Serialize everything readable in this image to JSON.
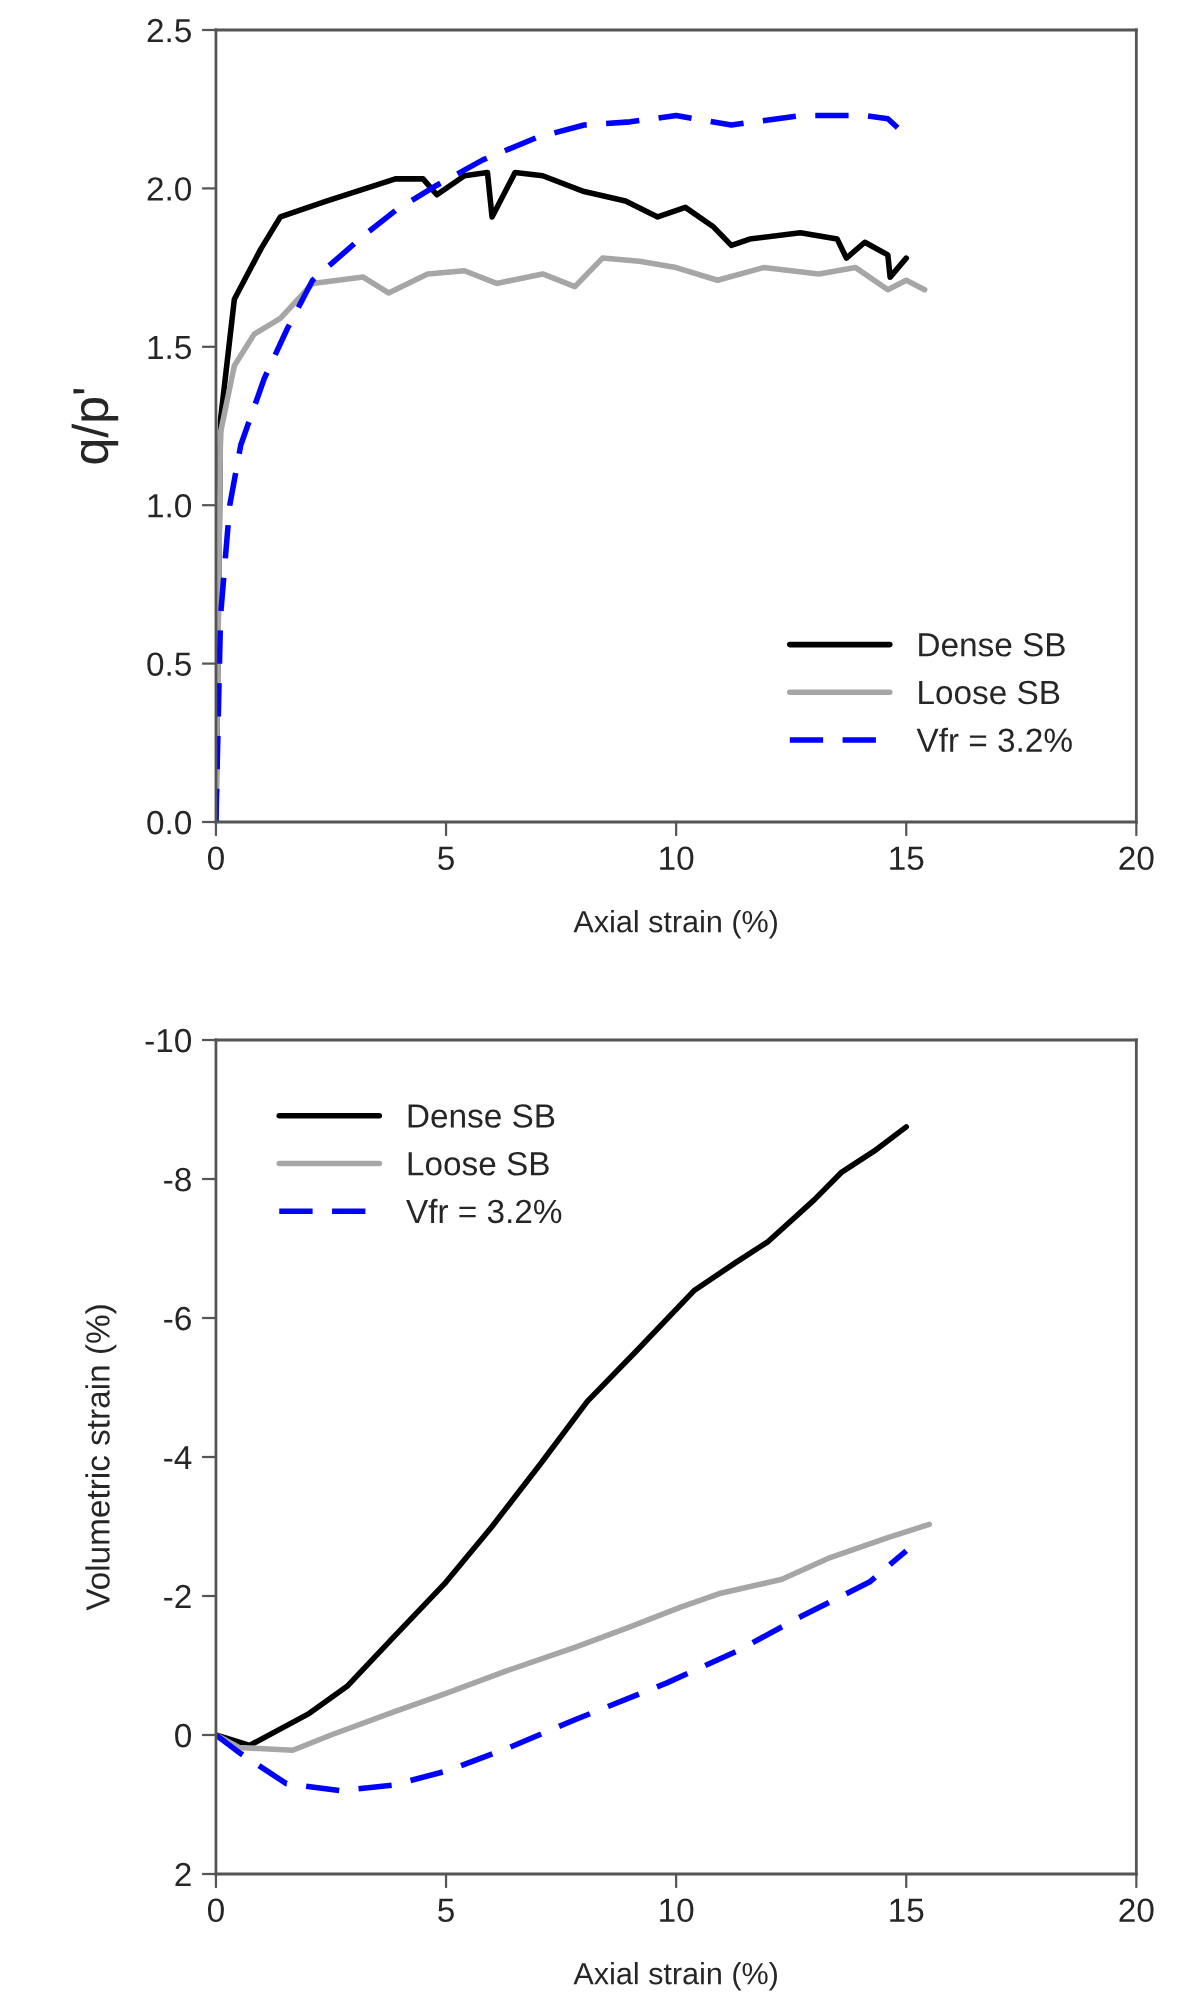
{
  "chart_data": [
    {
      "type": "line",
      "xlabel": "Axial strain (%)",
      "ylabel": "q/p'",
      "xlim": [
        0,
        20
      ],
      "xticks": [
        0,
        5,
        10,
        15,
        20
      ],
      "ylim": [
        0,
        2.5
      ],
      "yticks": [
        {
          "value": 0,
          "label": "0.0"
        },
        {
          "value": 0.5,
          "label": "0.5"
        },
        {
          "value": 1,
          "label": "1.0"
        },
        {
          "value": 1.5,
          "label": "1.5"
        },
        {
          "value": 2,
          "label": "2.0"
        },
        {
          "value": 2.5,
          "label": "2.5"
        }
      ],
      "legend": "bottom right",
      "grid": false,
      "series": [
        {
          "name": "Dense SB",
          "color": "#000000",
          "line_style": "solid",
          "x": [
            0,
            0.1,
            0.4,
            0.98,
            1.4,
            2.4,
            3.9,
            4.5,
            4.8,
            5.4,
            5.9,
            6.0,
            6.5,
            7.1,
            8.0,
            8.9,
            9.6,
            10.2,
            10.8,
            11.2,
            11.6,
            12.7,
            13.5,
            13.7,
            14.1,
            14.6,
            14.65,
            15.0
          ],
          "values": [
            0,
            1.27,
            1.65,
            1.81,
            1.91,
            1.96,
            2.03,
            2.03,
            1.98,
            2.04,
            2.05,
            1.91,
            2.05,
            2.04,
            1.99,
            1.96,
            1.91,
            1.94,
            1.88,
            1.82,
            1.84,
            1.86,
            1.84,
            1.78,
            1.83,
            1.79,
            1.72,
            1.78
          ]
        },
        {
          "name": "Loose SB",
          "color": "#a6a6a6",
          "line_style": "solid",
          "x": [
            0,
            0.1,
            0.4,
            0.83,
            1.4,
            2.1,
            3.2,
            3.75,
            4.6,
            5.4,
            6.1,
            7.1,
            7.8,
            8.4,
            9.2,
            10.0,
            10.9,
            11.9,
            13.1,
            13.9,
            14.6,
            15.0,
            15.4
          ],
          "values": [
            0,
            1.23,
            1.44,
            1.54,
            1.59,
            1.7,
            1.72,
            1.67,
            1.73,
            1.74,
            1.7,
            1.73,
            1.69,
            1.78,
            1.77,
            1.75,
            1.71,
            1.75,
            1.73,
            1.75,
            1.68,
            1.71,
            1.68
          ]
        },
        {
          "name": "Vfr = 3.2%",
          "color": "#0000ff",
          "line_style": "dashed",
          "x": [
            0,
            0.1,
            0.3,
            0.54,
            1.05,
            1.56,
            2.1,
            3.2,
            3.9,
            4.8,
            5.8,
            6.96,
            8.0,
            9.0,
            10.0,
            11.2,
            12.7,
            14.1,
            14.6,
            14.9
          ],
          "values": [
            0,
            0.65,
            1.0,
            1.19,
            1.4,
            1.56,
            1.71,
            1.85,
            1.93,
            2.01,
            2.09,
            2.16,
            2.2,
            2.21,
            2.23,
            2.2,
            2.23,
            2.23,
            2.22,
            2.18
          ]
        }
      ]
    },
    {
      "type": "line",
      "xlabel": "Axial strain (%)",
      "ylabel": "Volumetric strain (%)",
      "xlim": [
        0,
        20
      ],
      "xticks": [
        0,
        5,
        10,
        15,
        20
      ],
      "ylim": [
        2,
        -10
      ],
      "yticks": [
        -10,
        -8,
        -6,
        -4,
        -2,
        0,
        2
      ],
      "legend": "top left",
      "grid": false,
      "series": [
        {
          "name": "Dense SB",
          "color": "#000000",
          "line_style": "solid",
          "x": [
            0,
            0.73,
            2.0,
            2.85,
            3.85,
            5.0,
            6.0,
            7.05,
            8.07,
            9.1,
            10.4,
            11.3,
            12.0,
            13.0,
            13.6,
            14.3,
            15.0
          ],
          "values": [
            0,
            0.15,
            -0.3,
            -0.7,
            -1.4,
            -2.2,
            -3.0,
            -3.9,
            -4.8,
            -5.5,
            -6.4,
            -6.8,
            -7.1,
            -7.7,
            -8.1,
            -8.4,
            -8.75
          ]
        },
        {
          "name": "Loose SB",
          "color": "#a6a6a6",
          "line_style": "solid",
          "x": [
            0,
            0.5,
            1.67,
            2.5,
            3.85,
            5.0,
            6.3,
            7.8,
            8.94,
            10.1,
            10.97,
            12.3,
            13.3,
            14.6,
            15.5
          ],
          "values": [
            0,
            0.18,
            0.22,
            0,
            -0.33,
            -0.6,
            -0.92,
            -1.26,
            -1.54,
            -1.84,
            -2.04,
            -2.24,
            -2.54,
            -2.84,
            -3.03
          ]
        },
        {
          "name": "Vfr = 3.2%",
          "color": "#0000ff",
          "line_style": "dashed",
          "x": [
            0,
            0.5,
            1.53,
            2.7,
            3.85,
            5.0,
            6.3,
            7.8,
            9.8,
            11.3,
            12.7,
            14.2,
            15.0
          ],
          "values": [
            0,
            0.25,
            0.7,
            0.8,
            0.72,
            0.52,
            0.2,
            -0.22,
            -0.75,
            -1.2,
            -1.7,
            -2.2,
            -2.65
          ]
        }
      ]
    }
  ]
}
